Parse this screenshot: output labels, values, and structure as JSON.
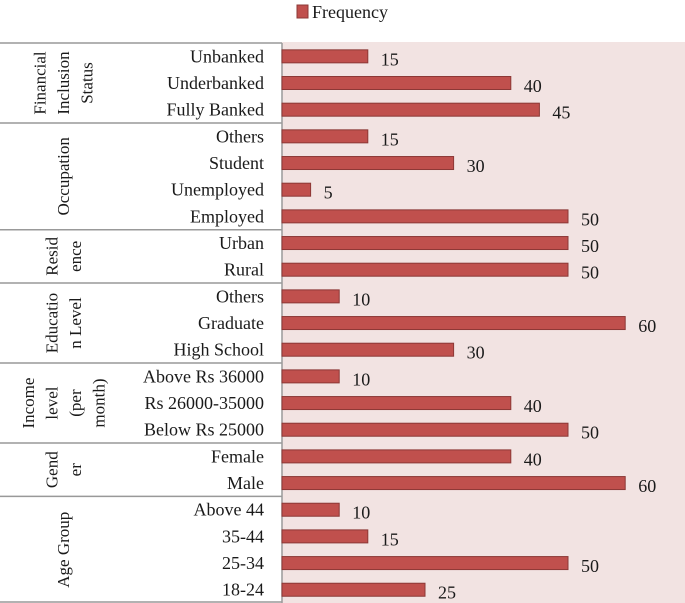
{
  "chart_data": {
    "type": "bar",
    "orientation": "horizontal",
    "legend": {
      "label": "Frequency",
      "placement": "top-center"
    },
    "colors": {
      "bar": "#c0504d",
      "bar_edge": "#8c3836",
      "plot_bg": "#f2e3e2",
      "axis": "#999999"
    },
    "xlim": [
      0,
      60
    ],
    "groups": [
      {
        "name": "Financial Inclusion Status",
        "label_lines": [
          "Financial",
          "Inclusion",
          "Status"
        ],
        "items": [
          {
            "label": "Unbanked",
            "value": 15
          },
          {
            "label": "Underbanked",
            "value": 40
          },
          {
            "label": "Fully Banked",
            "value": 45
          }
        ]
      },
      {
        "name": "Occupation",
        "label_lines": [
          "Occupation"
        ],
        "items": [
          {
            "label": "Others",
            "value": 15
          },
          {
            "label": "Student",
            "value": 30
          },
          {
            "label": "Unemployed",
            "value": 5
          },
          {
            "label": "Employed",
            "value": 50
          }
        ]
      },
      {
        "name": "Residence",
        "label_lines": [
          "Resid",
          "ence"
        ],
        "items": [
          {
            "label": "Urban",
            "value": 50
          },
          {
            "label": "Rural",
            "value": 50
          }
        ]
      },
      {
        "name": "Education Level",
        "label_lines": [
          "Educatio",
          "n Level"
        ],
        "items": [
          {
            "label": "Others",
            "value": 10
          },
          {
            "label": "Graduate",
            "value": 60
          },
          {
            "label": "High School",
            "value": 30
          }
        ]
      },
      {
        "name": "Income level (per month)",
        "label_lines": [
          "Income",
          "level",
          "(per",
          "month)"
        ],
        "items": [
          {
            "label": "Above Rs 36000",
            "value": 10
          },
          {
            "label": "Rs 26000-35000",
            "value": 40
          },
          {
            "label": "Below Rs 25000",
            "value": 50
          }
        ]
      },
      {
        "name": "Gender",
        "label_lines": [
          "Gend",
          "er"
        ],
        "items": [
          {
            "label": "Female",
            "value": 40
          },
          {
            "label": "Male",
            "value": 60
          }
        ]
      },
      {
        "name": "Age Group",
        "label_lines": [
          "Age Group"
        ],
        "items": [
          {
            "label": "Above 44",
            "value": 10
          },
          {
            "label": "35-44",
            "value": 15
          },
          {
            "label": "25-34",
            "value": 50
          },
          {
            "label": "18-24",
            "value": 25
          }
        ]
      }
    ]
  }
}
